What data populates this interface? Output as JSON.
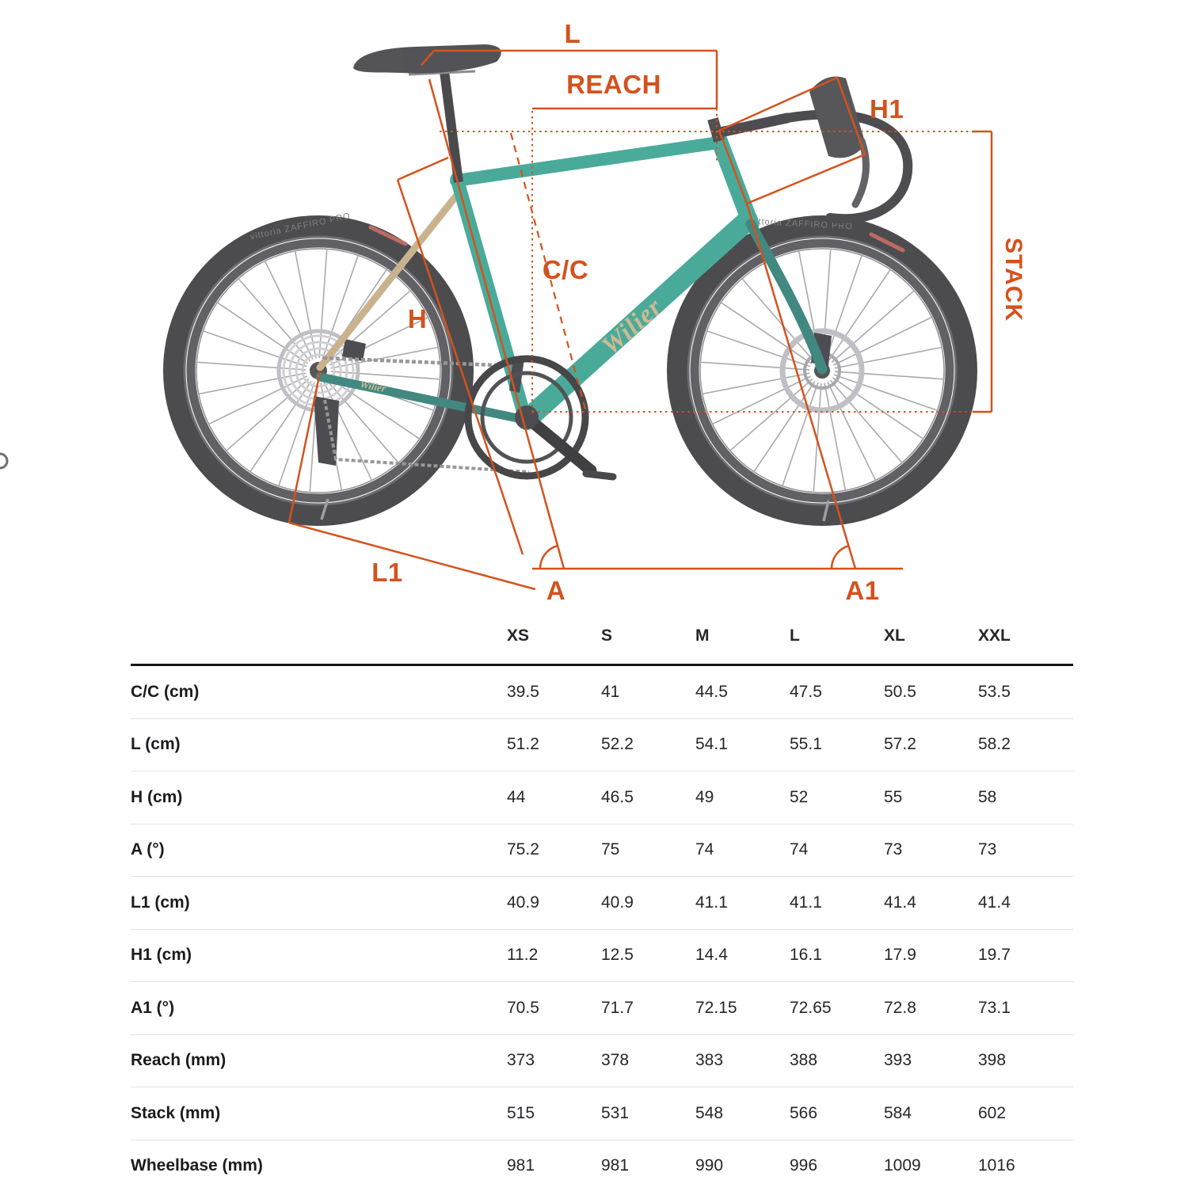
{
  "diagram": {
    "labels": {
      "l": "L",
      "reach": "REACH",
      "h1": "H1",
      "cc": "C/C",
      "h": "H",
      "stack": "STACK",
      "l1": "L1",
      "a": "A",
      "a1": "A1"
    },
    "brand_script": "Wilier",
    "chainstay_brand": "Wilier",
    "tire_label": "vittoria ZAFFIRO PRO",
    "annotation_color": "#d4521d",
    "frame_color": "#2b9c89",
    "seatstay_color": "#c0a67c"
  },
  "table": {
    "columns": [
      "XS",
      "S",
      "M",
      "L",
      "XL",
      "XXL"
    ],
    "rows": [
      {
        "label": "C/C (cm)",
        "values": [
          "39.5",
          "41",
          "44.5",
          "47.5",
          "50.5",
          "53.5"
        ]
      },
      {
        "label": "L (cm)",
        "values": [
          "51.2",
          "52.2",
          "54.1",
          "55.1",
          "57.2",
          "58.2"
        ]
      },
      {
        "label": "H (cm)",
        "values": [
          "44",
          "46.5",
          "49",
          "52",
          "55",
          "58"
        ]
      },
      {
        "label": "A (°)",
        "values": [
          "75.2",
          "75",
          "74",
          "74",
          "73",
          "73"
        ]
      },
      {
        "label": "L1 (cm)",
        "values": [
          "40.9",
          "40.9",
          "41.1",
          "41.1",
          "41.4",
          "41.4"
        ]
      },
      {
        "label": "H1 (cm)",
        "values": [
          "11.2",
          "12.5",
          "14.4",
          "16.1",
          "17.9",
          "19.7"
        ]
      },
      {
        "label": "A1 (°)",
        "values": [
          "70.5",
          "71.7",
          "72.15",
          "72.65",
          "72.8",
          "73.1"
        ]
      },
      {
        "label": "Reach (mm)",
        "values": [
          "373",
          "378",
          "383",
          "388",
          "393",
          "398"
        ]
      },
      {
        "label": "Stack (mm)",
        "values": [
          "515",
          "531",
          "548",
          "566",
          "584",
          "602"
        ]
      },
      {
        "label": "Wheelbase (mm)",
        "values": [
          "981",
          "981",
          "990",
          "996",
          "1009",
          "1016"
        ]
      }
    ]
  }
}
